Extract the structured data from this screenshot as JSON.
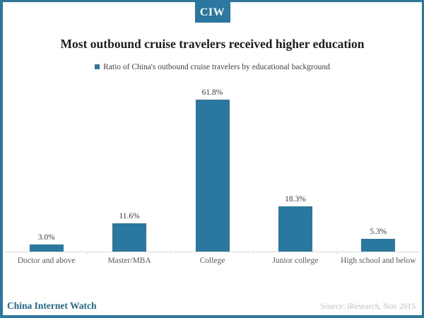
{
  "logo": {
    "text": "CIW"
  },
  "title": "Most outbound cruise travelers received higher education",
  "legend": {
    "label": "Ratio of China's outbound cruise travelers by educational background"
  },
  "chart_data": {
    "type": "bar",
    "title": "Most outbound cruise travelers received higher education",
    "categories": [
      "Doctor and above",
      "Master/MBA",
      "College",
      "Junior college",
      "High school and below"
    ],
    "values": [
      3.0,
      11.6,
      61.8,
      18.3,
      5.3
    ],
    "value_labels": [
      "3.0%",
      "11.6%",
      "61.8%",
      "18.3%",
      "5.3%"
    ],
    "series_name": "Ratio of China's outbound cruise travelers by educational background",
    "bar_color": "#2a779f",
    "grid": false,
    "legend_position": "top",
    "value_labels_shown": true,
    "y_axis_shown": false
  },
  "footer": {
    "brand": "China Internet Watch",
    "source": "Source: iResearch, Nov 2015"
  },
  "colors": {
    "accent": "#2a779f",
    "brand_text": "#20688f",
    "source_text": "#b6c2ca",
    "axis_line": "#d9d9d9"
  }
}
